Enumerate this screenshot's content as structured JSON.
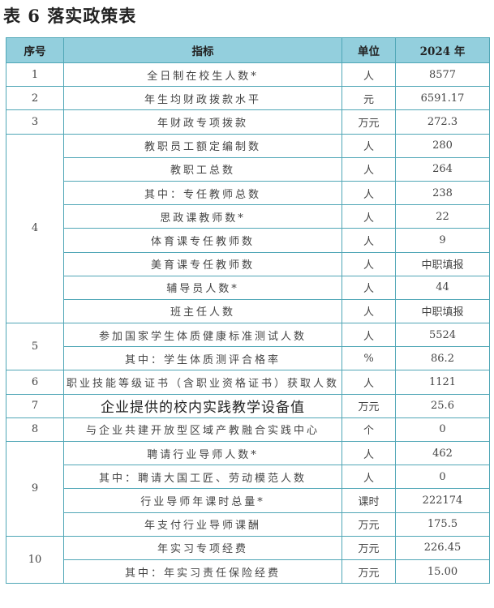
{
  "title": "表 6  落实政策表",
  "columns": [
    "序号",
    "指标",
    "单位",
    "2024 年"
  ],
  "groups": [
    {
      "no": "1",
      "rows": [
        {
          "indicator": "全日制在校生人数*",
          "unit": "人",
          "value": "8577"
        }
      ]
    },
    {
      "no": "2",
      "rows": [
        {
          "indicator": "年生均财政拨款水平",
          "unit": "元",
          "value": "6591.17"
        }
      ]
    },
    {
      "no": "3",
      "rows": [
        {
          "indicator": "年财政专项拨款",
          "unit": "万元",
          "value": "272.3"
        }
      ]
    },
    {
      "no": "4",
      "rows": [
        {
          "indicator": "教职员工额定编制数",
          "unit": "人",
          "value": "280"
        },
        {
          "indicator": "教职工总数",
          "unit": "人",
          "value": "264"
        },
        {
          "indicator": "其中：专任教师总数",
          "unit": "人",
          "value": "238"
        },
        {
          "indicator": "思政课教师数*",
          "unit": "人",
          "value": "22"
        },
        {
          "indicator": "体育课专任教师数",
          "unit": "人",
          "value": "9"
        },
        {
          "indicator": "美育课专任教师数",
          "unit": "人",
          "value": "中职填报"
        },
        {
          "indicator": "辅导员人数*",
          "unit": "人",
          "value": "44"
        },
        {
          "indicator": "班主任人数",
          "unit": "人",
          "value": "中职填报"
        }
      ]
    },
    {
      "no": "5",
      "rows": [
        {
          "indicator": "参加国家学生体质健康标准测试人数",
          "unit": "人",
          "value": "5524"
        },
        {
          "indicator": "其中：学生体质测评合格率",
          "unit": "%",
          "value": "86.2"
        }
      ]
    },
    {
      "no": "6",
      "rows": [
        {
          "indicator": "职业技能等级证书（含职业资格证书）获取人数",
          "unit": "人",
          "value": "1121"
        }
      ]
    },
    {
      "no": "7",
      "rows": [
        {
          "indicator": "企业提供的校内实践教学设备值",
          "unit": "万元",
          "value": "25.6"
        }
      ]
    },
    {
      "no": "8",
      "rows": [
        {
          "indicator": "与企业共建开放型区域产教融合实践中心",
          "unit": "个",
          "value": "0"
        }
      ]
    },
    {
      "no": "9",
      "rows": [
        {
          "indicator": "聘请行业导师人数*",
          "unit": "人",
          "value": "462"
        },
        {
          "indicator": "其中：聘请大国工匠、劳动模范人数",
          "unit": "人",
          "value": "0"
        },
        {
          "indicator": "行业导师年课时总量*",
          "unit": "课时",
          "value": "222174"
        },
        {
          "indicator": "年支付行业导师课酬",
          "unit": "万元",
          "value": "175.5"
        }
      ]
    },
    {
      "no": "10",
      "rows": [
        {
          "indicator": "年实习专项经费",
          "unit": "万元",
          "value": "226.45"
        },
        {
          "indicator": "其中：年实习责任保险经费",
          "unit": "万元",
          "value": "15.00"
        }
      ]
    }
  ]
}
